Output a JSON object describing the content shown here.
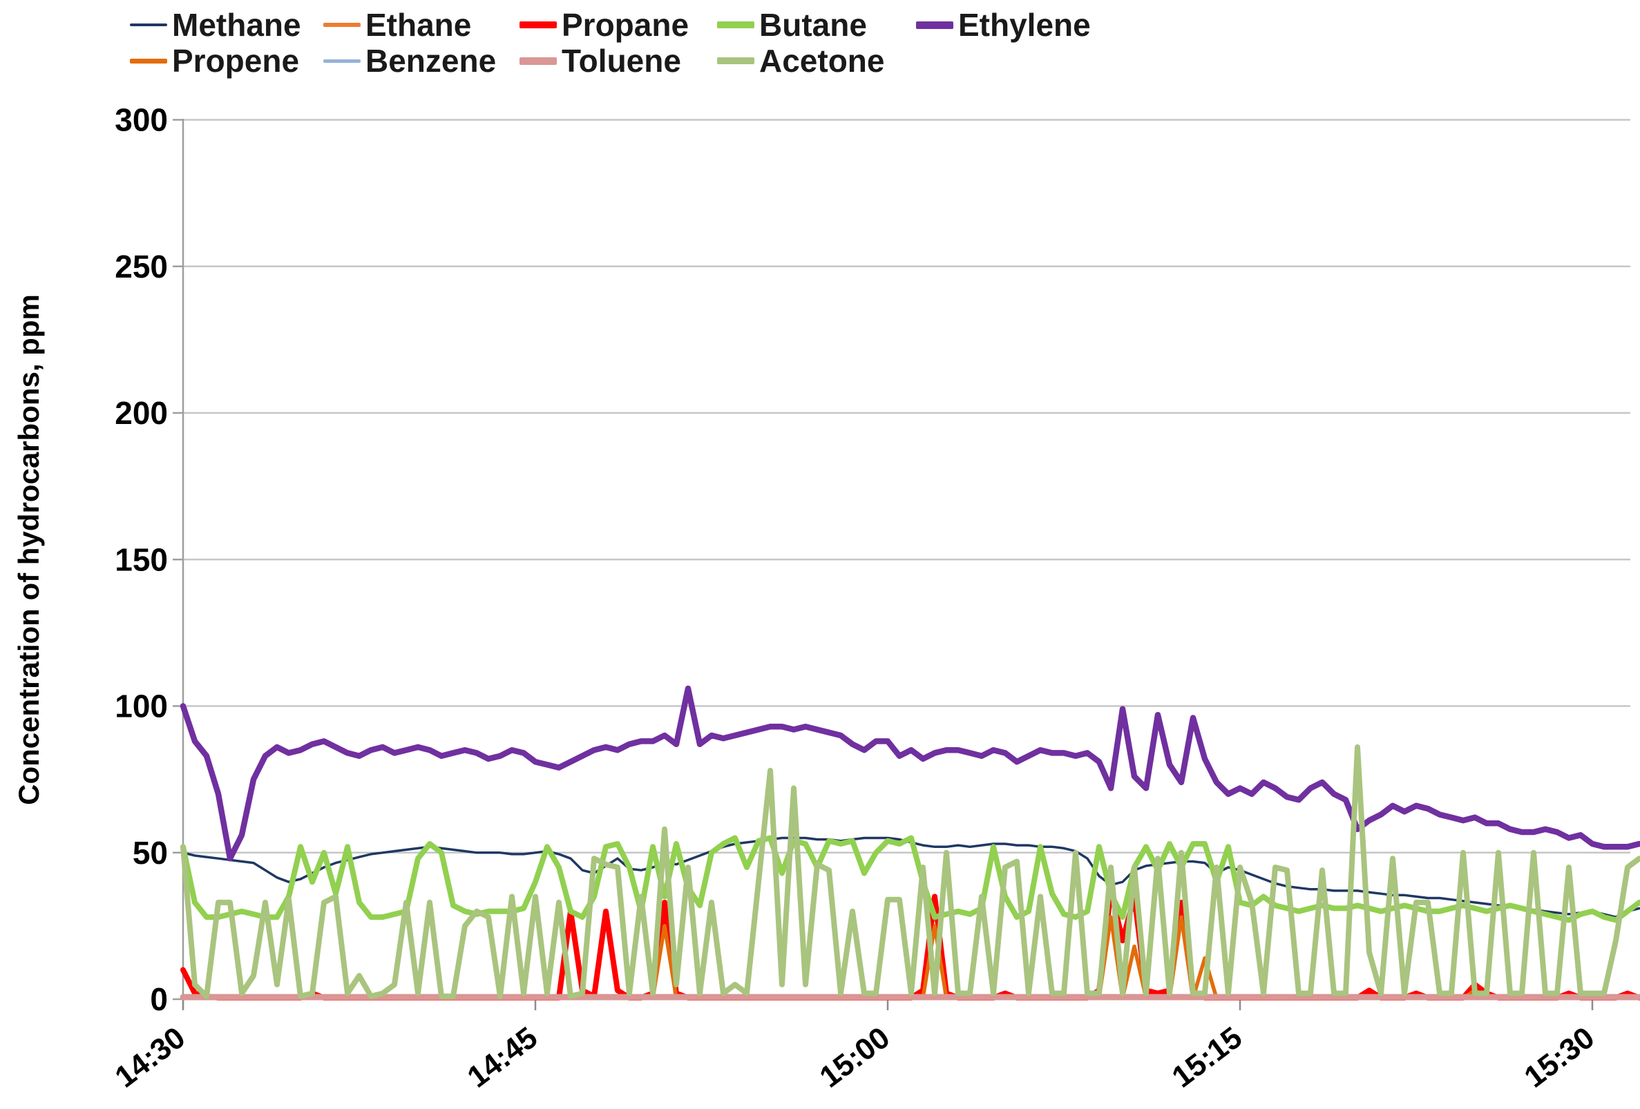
{
  "page": {
    "background": "#FFFFFF"
  },
  "chart_data": {
    "type": "line",
    "title": "",
    "ylabel": "Concentration of hydrocarbons, ppm",
    "xlabel": "",
    "ylim": [
      0,
      300
    ],
    "y_ticks": [
      "0",
      "50",
      "100",
      "150",
      "200",
      "250",
      "300"
    ],
    "y_tick_values": [
      0,
      50,
      100,
      150,
      200,
      250,
      300
    ],
    "x_ticks": [
      "14:30",
      "14:45",
      "15:00",
      "15:15",
      "15:30"
    ],
    "x_tick_minutes": [
      0,
      15,
      30,
      45,
      60
    ],
    "time_start": "14:30",
    "time_end": "15:30",
    "sample_interval_minutes": 0.5,
    "grid": "horizontal",
    "legend_position": "top",
    "legend_rows": [
      [
        "Methane",
        "Ethane",
        "Propane",
        "Butane",
        "Ethylene"
      ],
      [
        "Propene",
        "Benzene",
        "Toluene",
        "Acetone"
      ]
    ],
    "colors": {
      "gridline": "#C6C6C6",
      "axis": "#9E9E9E",
      "tick": "#8C8C8C",
      "text": "#000000"
    },
    "series": [
      {
        "name": "Methane",
        "color": "#1F3864",
        "line_width": 3.5,
        "values": [
          50,
          49,
          48.5,
          48,
          47.5,
          47,
          46.5,
          44,
          41.5,
          40,
          41,
          43,
          45,
          46.5,
          47.5,
          48.5,
          49.5,
          50,
          50.5,
          51,
          51.5,
          52,
          51.5,
          51,
          50.5,
          50,
          50,
          50,
          49.5,
          49.5,
          50,
          50.5,
          49.5,
          48,
          44,
          43,
          45.5,
          48,
          44.5,
          44,
          45,
          46.5,
          46,
          47.5,
          49,
          50.5,
          52,
          53,
          53.5,
          54,
          54.5,
          55,
          55,
          55,
          54.5,
          54.5,
          54,
          54.5,
          55,
          55,
          55,
          54.5,
          53.5,
          52.5,
          52,
          52,
          52.5,
          52,
          52.5,
          53,
          53,
          52.5,
          52.5,
          52,
          52,
          51.5,
          50.5,
          48,
          42,
          39,
          40,
          44,
          45.5,
          46,
          46.5,
          47,
          47,
          46.5,
          43,
          45,
          44,
          42.5,
          41,
          39.5,
          38.5,
          38,
          37.5,
          37.5,
          37,
          37,
          37,
          36.5,
          36,
          35.5,
          35.5,
          35,
          34.5,
          34.5,
          34,
          33.5,
          33,
          32.5,
          32,
          31.5,
          31,
          30.5,
          30,
          29.5,
          29,
          29.5,
          30,
          29,
          28,
          30,
          31
        ]
      },
      {
        "name": "Ethane",
        "color": "#ED7D31",
        "line_width": 5,
        "values": [
          0.35,
          0.35,
          0.35,
          0.35,
          0.35,
          0.35,
          0.35,
          0.35,
          0.35,
          0.35,
          0.35,
          0.35,
          0.35,
          0.35,
          0.35,
          0.35,
          0.35,
          0.35,
          0.35,
          0.35,
          0.35,
          0.35,
          0.35,
          0.35,
          0.35,
          0.35,
          0.35,
          0.35,
          0.35,
          0.35,
          0.35,
          0.35,
          0.35,
          0.35,
          0.35,
          0.35,
          0.35,
          0.35,
          0.35,
          0.35,
          0.35,
          0.35,
          0.35,
          0.35,
          0.35,
          0.35,
          0.35,
          0.35,
          0.35,
          0.35,
          0.35,
          0.35,
          0.35,
          0.35,
          0.35,
          0.35,
          0.35,
          0.35,
          0.35,
          0.35,
          0.35,
          0.35,
          0.35,
          0.35,
          0.35,
          0.35,
          0.35,
          0.35,
          0.35,
          0.35,
          0.35,
          0.35,
          0.35,
          0.35,
          0.35,
          0.35,
          0.35,
          0.35,
          0.35,
          0.35,
          0.35,
          0.35,
          0.35,
          0.35,
          0.35,
          0.35,
          0.35,
          0.35,
          0.35,
          0.35,
          0.35,
          0.35,
          0.35,
          0.35,
          0.35,
          0.35,
          0.35,
          0.35,
          0.35,
          0.35,
          0.35,
          0.35,
          0.35,
          0.35,
          0.35,
          0.35,
          0.35,
          0.35,
          0.35,
          0.35,
          0.35,
          0.35,
          0.35,
          0.35,
          0.35,
          0.35,
          0.35,
          0.35,
          0.35,
          0.35,
          0.35,
          0.35,
          0.35,
          0.35,
          0.35
        ]
      },
      {
        "name": "Propane",
        "color": "#FF0000",
        "line_width": 8,
        "values": [
          10,
          2,
          1,
          0.5,
          0.5,
          0.5,
          0.5,
          0.5,
          0.5,
          0.5,
          0.5,
          2,
          0.5,
          0.5,
          0.5,
          0.5,
          0.5,
          0.5,
          0.5,
          0.5,
          0.5,
          0.5,
          0.5,
          0.5,
          0.5,
          0.5,
          0.5,
          0.5,
          0.5,
          0.5,
          0.5,
          0.5,
          0.5,
          30,
          3,
          1,
          30,
          3,
          0.5,
          0.5,
          2,
          33,
          2,
          0.5,
          0.5,
          0.5,
          0.5,
          0.5,
          0.5,
          0.5,
          0.5,
          0.5,
          0.5,
          0.5,
          0.5,
          0.5,
          0.5,
          0.5,
          0.5,
          0.5,
          0.5,
          0.5,
          0.5,
          3,
          35,
          2,
          0.5,
          0.5,
          0.5,
          0.5,
          2,
          0.5,
          0.5,
          0.5,
          0.5,
          0.5,
          0.5,
          0.5,
          3,
          37,
          20,
          35,
          3,
          2,
          3,
          33,
          2,
          0.5,
          0.5,
          0.5,
          0.5,
          0.5,
          0.5,
          0.5,
          0.5,
          0.5,
          0.5,
          0.5,
          0.5,
          0.5,
          0.5,
          3,
          0.5,
          0.5,
          0.5,
          2,
          0.5,
          0.5,
          0.5,
          0.5,
          5,
          2,
          0.5,
          0.5,
          0.5,
          0.5,
          0.5,
          0.5,
          2,
          0.5,
          0.5,
          0.5,
          0.5,
          2,
          0.5
        ]
      },
      {
        "name": "Butane",
        "color": "#92D050",
        "line_width": 8,
        "values": [
          52,
          33,
          28,
          28,
          29,
          30,
          29,
          28,
          28,
          35,
          52,
          40,
          50,
          36,
          52,
          33,
          28,
          28,
          29,
          30,
          48,
          53,
          50,
          32,
          30,
          29,
          30,
          30,
          30,
          31,
          40,
          52,
          45,
          30,
          28,
          35,
          52,
          53,
          45,
          30,
          52,
          35,
          53,
          38,
          32,
          50,
          53,
          55,
          45,
          54,
          55,
          43,
          54,
          53,
          45,
          54,
          53,
          54,
          43,
          50,
          54,
          53,
          55,
          40,
          28,
          29,
          30,
          29,
          31,
          52,
          35,
          28,
          30,
          52,
          36,
          29,
          28,
          30,
          52,
          36,
          28,
          45,
          52,
          44,
          53,
          45,
          53,
          53,
          40,
          52,
          33,
          32,
          35,
          32,
          31,
          30,
          31,
          32,
          31,
          31,
          32,
          31,
          30,
          31,
          32,
          31,
          30,
          30,
          31,
          32,
          31,
          30,
          31,
          32,
          31,
          30,
          29,
          28,
          27,
          29,
          30,
          28,
          27,
          30,
          33
        ]
      },
      {
        "name": "Ethylene",
        "color": "#7030A0",
        "line_width": 8.5,
        "values": [
          100,
          88,
          83,
          70,
          48,
          56,
          75,
          83,
          86,
          84,
          85,
          87,
          88,
          86,
          84,
          83,
          85,
          86,
          84,
          85,
          86,
          85,
          83,
          84,
          85,
          84,
          82,
          83,
          85,
          84,
          81,
          80,
          79,
          81,
          83,
          85,
          86,
          85,
          87,
          88,
          88,
          90,
          87,
          106,
          87,
          90,
          89,
          90,
          91,
          92,
          93,
          93,
          92,
          93,
          92,
          91,
          90,
          87,
          85,
          88,
          88,
          83,
          85,
          82,
          84,
          85,
          85,
          84,
          83,
          85,
          84,
          81,
          83,
          85,
          84,
          84,
          83,
          84,
          81,
          72,
          99,
          76,
          72,
          97,
          80,
          74,
          96,
          82,
          74,
          70,
          72,
          70,
          74,
          72,
          69,
          68,
          72,
          74,
          70,
          68,
          58,
          61,
          63,
          66,
          64,
          66,
          65,
          63,
          62,
          61,
          62,
          60,
          60,
          58,
          57,
          57,
          58,
          57,
          55,
          56,
          53,
          52,
          52,
          52,
          53
        ]
      },
      {
        "name": "Propene",
        "color": "#E36C0A",
        "line_width": 5.5,
        "values": [
          0.4,
          0.4,
          0.4,
          0.4,
          0.4,
          0.4,
          0.4,
          0.4,
          0.4,
          0.4,
          0.4,
          0.4,
          0.4,
          0.4,
          0.4,
          0.4,
          0.4,
          0.4,
          0.4,
          0.4,
          0.4,
          0.4,
          0.4,
          0.4,
          0.4,
          0.4,
          0.4,
          0.4,
          0.4,
          0.4,
          0.4,
          0.4,
          0.4,
          0.4,
          0.4,
          0.4,
          0.4,
          0.4,
          0.4,
          0.4,
          0.4,
          25,
          0.4,
          0.4,
          0.4,
          0.4,
          0.4,
          0.4,
          0.4,
          0.4,
          0.4,
          0.4,
          0.4,
          0.4,
          0.4,
          0.4,
          0.4,
          0.4,
          0.4,
          0.4,
          0.4,
          0.4,
          0.4,
          0.4,
          25,
          0.4,
          0.4,
          0.4,
          0.4,
          0.4,
          0.4,
          0.4,
          0.4,
          0.4,
          0.4,
          0.4,
          0.4,
          0.4,
          0.4,
          28,
          0.4,
          18,
          0.4,
          0.4,
          0.4,
          28,
          0.4,
          14,
          0.4,
          0.4,
          0.4,
          0.4,
          0.4,
          0.4,
          0.4,
          0.4,
          0.4,
          0.4,
          0.4,
          0.4,
          0.4,
          0.4,
          0.4,
          0.4,
          0.4,
          0.4,
          0.4,
          0.4,
          0.4,
          0.4,
          3,
          0.4,
          0.4,
          0.4,
          0.4,
          0.4,
          0.4,
          0.4,
          0.4,
          0.4,
          0.4,
          0.4,
          0.4,
          0.4,
          0.4
        ]
      },
      {
        "name": "Benzene",
        "color": "#95B3D7",
        "line_width": 4,
        "values": [
          0.3,
          0.3,
          0.3,
          0.3,
          0.3,
          0.3,
          0.3,
          0.3,
          0.3,
          0.3,
          0.3,
          0.3,
          0.3,
          0.3,
          0.3,
          0.3,
          0.3,
          0.3,
          0.3,
          0.3,
          0.3,
          0.3,
          0.3,
          0.3,
          0.3,
          0.3,
          0.3,
          0.3,
          0.3,
          0.3,
          0.3,
          0.3,
          0.3,
          0.3,
          0.3,
          0.3,
          0.3,
          0.3,
          0.3,
          0.3,
          0.3,
          0.3,
          0.3,
          0.3,
          0.3,
          0.3,
          0.3,
          0.3,
          0.3,
          0.3,
          0.3,
          0.3,
          0.3,
          0.3,
          0.3,
          0.3,
          0.3,
          0.3,
          0.3,
          0.3,
          0.3,
          0.3,
          0.3,
          0.3,
          0.3,
          0.3,
          0.3,
          0.3,
          0.3,
          0.3,
          0.3,
          0.3,
          0.3,
          0.3,
          0.3,
          0.3,
          0.3,
          0.3,
          0.3,
          0.3,
          0.3,
          0.3,
          0.3,
          0.3,
          0.3,
          0.3,
          0.3,
          0.3,
          0.3,
          0.3,
          0.3,
          0.3,
          0.3,
          0.3,
          0.3,
          0.3,
          0.3,
          0.3,
          0.3,
          0.3,
          0.3,
          0.3,
          0.3,
          0.3,
          0.3,
          0.3,
          0.3,
          0.3,
          0.3,
          0.3,
          0.3,
          0.3,
          0.3,
          0.3,
          0.3,
          0.3,
          0.3,
          0.3,
          0.3,
          0.3,
          0.3,
          0.3,
          0.3,
          0.3,
          0.3
        ]
      },
      {
        "name": "Toluene",
        "color": "#D99694",
        "line_width": 9,
        "values": [
          0.7,
          0.7,
          0.7,
          0.7,
          0.7,
          0.7,
          0.7,
          0.7,
          0.7,
          0.7,
          0.7,
          0.7,
          0.7,
          0.7,
          0.7,
          0.7,
          0.7,
          0.7,
          0.7,
          0.7,
          0.7,
          0.7,
          0.7,
          0.7,
          0.7,
          0.7,
          0.7,
          0.7,
          0.7,
          0.7,
          0.7,
          0.7,
          0.7,
          0.7,
          0.7,
          0.7,
          0.7,
          0.7,
          0.7,
          0.7,
          0.7,
          0.7,
          0.7,
          0.7,
          0.7,
          0.7,
          0.7,
          0.7,
          0.7,
          0.7,
          0.7,
          0.7,
          0.7,
          0.7,
          0.7,
          0.7,
          0.7,
          0.7,
          0.7,
          0.7,
          0.7,
          0.7,
          0.7,
          0.7,
          0.7,
          0.7,
          0.7,
          0.7,
          0.7,
          0.7,
          0.7,
          0.7,
          0.7,
          0.7,
          0.7,
          0.7,
          0.7,
          0.7,
          0.7,
          0.7,
          0.7,
          0.7,
          0.7,
          0.7,
          0.7,
          0.7,
          0.7,
          0.7,
          0.7,
          0.7,
          0.7,
          0.7,
          0.7,
          0.7,
          0.7,
          0.7,
          0.7,
          0.7,
          0.7,
          0.7,
          0.7,
          0.7,
          0.7,
          0.7,
          0.7,
          0.7,
          0.7,
          0.7,
          0.7,
          0.7,
          0.7,
          0.7,
          0.7,
          0.7,
          0.7,
          0.7,
          0.7,
          0.7,
          0.7,
          0.7,
          0.7,
          0.7,
          0.7,
          0.7,
          0.7
        ]
      },
      {
        "name": "Acetone",
        "color": "#A9C47E",
        "line_width": 8,
        "values": [
          52,
          5,
          1,
          33,
          33,
          2,
          8,
          33,
          5,
          34,
          1,
          2,
          33,
          35,
          2,
          8,
          1,
          2,
          5,
          33,
          2,
          33,
          1,
          1,
          25,
          30,
          28,
          1,
          35,
          2,
          35,
          2,
          33,
          1,
          2,
          48,
          46,
          45,
          2,
          35,
          2,
          58,
          5,
          45,
          2,
          33,
          2,
          5,
          2,
          40,
          78,
          5,
          72,
          5,
          46,
          44,
          2,
          30,
          2,
          2,
          34,
          34,
          2,
          45,
          2,
          50,
          2,
          2,
          35,
          2,
          45,
          47,
          2,
          35,
          2,
          2,
          50,
          2,
          2,
          45,
          2,
          45,
          2,
          48,
          2,
          50,
          2,
          2,
          45,
          2,
          45,
          33,
          2,
          45,
          44,
          2,
          2,
          44,
          2,
          2,
          86,
          16,
          2,
          48,
          2,
          33,
          33,
          2,
          2,
          50,
          2,
          2,
          50,
          2,
          2,
          50,
          2,
          2,
          45,
          2,
          2,
          2,
          20,
          45,
          48
        ]
      }
    ]
  }
}
